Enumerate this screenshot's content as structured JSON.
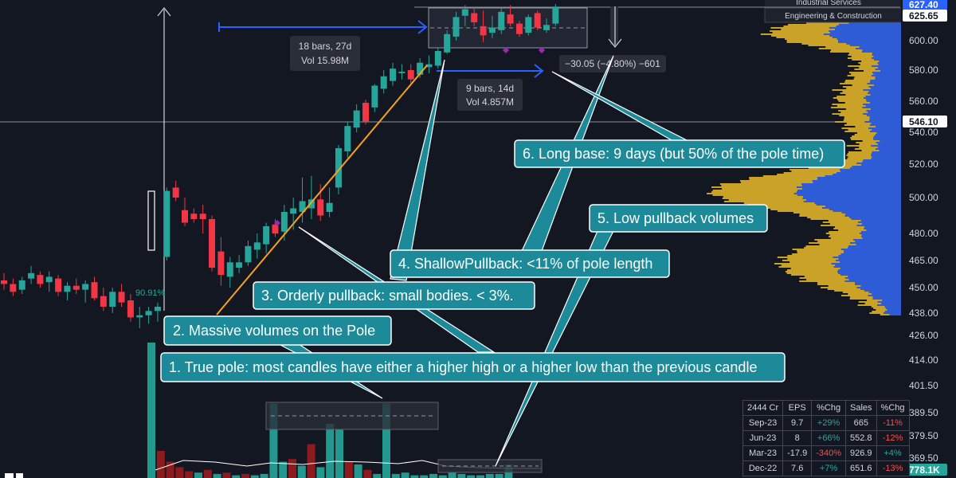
{
  "colors": {
    "background": "#131722",
    "up": "#26a69a",
    "down": "#f23645",
    "pole_line": "#f7a21b",
    "measure_arrow": "#2962ff",
    "callout_fill": "#1d8a99",
    "profile_gold": "#c9a227",
    "profile_blue": "#2e5bd6",
    "grid": "#8a8f98"
  },
  "chart_data": {
    "type": "candlestick",
    "y_axis": {
      "ticks": [
        "600.00",
        "580.00",
        "560.00",
        "540.00",
        "520.00",
        "500.00",
        "480.00",
        "465.00",
        "450.00",
        "438.00",
        "426.00",
        "414.00",
        "401.50",
        "389.50",
        "379.50",
        "369.50"
      ],
      "tick_values": [
        600,
        580,
        560,
        540,
        520,
        500,
        480,
        465,
        450,
        438,
        426,
        414,
        401.5,
        389.5,
        379.5,
        369.5
      ],
      "highlight_labels": [
        {
          "text": "627.40",
          "value": 627.4,
          "bg": "#2962ff"
        },
        {
          "text": "625.65",
          "value": 625.65,
          "bg": "#ffffff"
        },
        {
          "text": "546.10",
          "value": 546.1,
          "bg": "#ffffff"
        },
        {
          "text": "778.1K",
          "value": 369,
          "bg": "#26a69a"
        }
      ]
    },
    "candles": [
      {
        "o": 454,
        "h": 458,
        "l": 449,
        "c": 452
      },
      {
        "o": 452,
        "h": 455,
        "l": 446,
        "c": 448
      },
      {
        "o": 449,
        "h": 456,
        "l": 447,
        "c": 454
      },
      {
        "o": 455,
        "h": 462,
        "l": 452,
        "c": 458
      },
      {
        "o": 457,
        "h": 459,
        "l": 450,
        "c": 452
      },
      {
        "o": 453,
        "h": 459,
        "l": 448,
        "c": 456
      },
      {
        "o": 455,
        "h": 457,
        "l": 446,
        "c": 448
      },
      {
        "o": 448,
        "h": 453,
        "l": 444,
        "c": 451
      },
      {
        "o": 451,
        "h": 455,
        "l": 447,
        "c": 449
      },
      {
        "o": 449,
        "h": 454,
        "l": 443,
        "c": 452
      },
      {
        "o": 453,
        "h": 456,
        "l": 444,
        "c": 445
      },
      {
        "o": 446,
        "h": 450,
        "l": 439,
        "c": 441
      },
      {
        "o": 441,
        "h": 450,
        "l": 438,
        "c": 448
      },
      {
        "o": 448,
        "h": 452,
        "l": 441,
        "c": 443
      },
      {
        "o": 444,
        "h": 447,
        "l": 434,
        "c": 436
      },
      {
        "o": 436,
        "h": 441,
        "l": 431,
        "c": 437
      },
      {
        "o": 437,
        "h": 441,
        "l": 433,
        "c": 439
      },
      {
        "o": 439,
        "h": 443,
        "l": 434,
        "c": 441
      },
      {
        "o": 467,
        "h": 506,
        "l": 465,
        "c": 504
      },
      {
        "o": 506,
        "h": 510,
        "l": 498,
        "c": 500
      },
      {
        "o": 493,
        "h": 500,
        "l": 484,
        "c": 486
      },
      {
        "o": 491,
        "h": 494,
        "l": 486,
        "c": 488
      },
      {
        "o": 491,
        "h": 496,
        "l": 480,
        "c": 488
      },
      {
        "o": 488,
        "h": 490,
        "l": 459,
        "c": 461
      },
      {
        "o": 470,
        "h": 478,
        "l": 451,
        "c": 457
      },
      {
        "o": 456,
        "h": 467,
        "l": 450,
        "c": 464
      },
      {
        "o": 461,
        "h": 468,
        "l": 458,
        "c": 464
      },
      {
        "o": 464,
        "h": 476,
        "l": 462,
        "c": 473
      },
      {
        "o": 471,
        "h": 480,
        "l": 466,
        "c": 475
      },
      {
        "o": 474,
        "h": 486,
        "l": 469,
        "c": 484
      },
      {
        "o": 485,
        "h": 488,
        "l": 478,
        "c": 480
      },
      {
        "o": 481,
        "h": 496,
        "l": 476,
        "c": 492
      },
      {
        "o": 491,
        "h": 500,
        "l": 482,
        "c": 494
      },
      {
        "o": 492,
        "h": 512,
        "l": 486,
        "c": 498
      },
      {
        "o": 494,
        "h": 513,
        "l": 488,
        "c": 499
      },
      {
        "o": 499,
        "h": 508,
        "l": 487,
        "c": 490
      },
      {
        "o": 492,
        "h": 506,
        "l": 489,
        "c": 497
      },
      {
        "o": 506,
        "h": 532,
        "l": 502,
        "c": 530
      },
      {
        "o": 528,
        "h": 547,
        "l": 524,
        "c": 544
      },
      {
        "o": 543,
        "h": 558,
        "l": 540,
        "c": 554
      },
      {
        "o": 559,
        "h": 561,
        "l": 545,
        "c": 547
      },
      {
        "o": 556,
        "h": 571,
        "l": 553,
        "c": 570
      },
      {
        "o": 568,
        "h": 580,
        "l": 565,
        "c": 576
      },
      {
        "o": 573,
        "h": 585,
        "l": 570,
        "c": 581
      },
      {
        "o": 578,
        "h": 584,
        "l": 574,
        "c": 579
      },
      {
        "o": 580,
        "h": 584,
        "l": 570,
        "c": 574
      },
      {
        "o": 577,
        "h": 588,
        "l": 575,
        "c": 585
      },
      {
        "o": 582,
        "h": 590,
        "l": 578,
        "c": 584
      },
      {
        "o": 583,
        "h": 595,
        "l": 581,
        "c": 593
      },
      {
        "o": 592,
        "h": 608,
        "l": 591,
        "c": 605
      },
      {
        "o": 603,
        "h": 622,
        "l": 600,
        "c": 618
      },
      {
        "o": 619,
        "h": 627,
        "l": 611,
        "c": 624
      },
      {
        "o": 621,
        "h": 626,
        "l": 611,
        "c": 614
      },
      {
        "o": 611,
        "h": 623,
        "l": 599,
        "c": 604
      },
      {
        "o": 606,
        "h": 619,
        "l": 602,
        "c": 610
      },
      {
        "o": 608,
        "h": 625,
        "l": 605,
        "c": 622
      },
      {
        "o": 620,
        "h": 627,
        "l": 611,
        "c": 613
      },
      {
        "o": 613,
        "h": 615,
        "l": 603,
        "c": 605
      },
      {
        "o": 606,
        "h": 620,
        "l": 604,
        "c": 618
      },
      {
        "o": 621,
        "h": 623,
        "l": 608,
        "c": 610
      },
      {
        "o": 608,
        "h": 617,
        "l": 606,
        "c": 612
      },
      {
        "o": 613,
        "h": 628,
        "l": 611,
        "c": 626
      }
    ],
    "annotations": [
      {
        "type": "text",
        "text": "90.91%"
      },
      {
        "type": "info",
        "lines": [
          "18 bars, 27d",
          "Vol 15.98M"
        ]
      },
      {
        "type": "info",
        "lines": [
          "9 bars, 14d",
          "Vol 4.857M"
        ]
      },
      {
        "type": "info",
        "lines": [
          "−30.05 (−4.80%) −601"
        ]
      }
    ],
    "volume_bars": [
      {
        "v": 100,
        "c": "up"
      },
      {
        "v": 20,
        "c": "down"
      },
      {
        "v": 12,
        "c": "down"
      },
      {
        "v": 8,
        "c": "down"
      },
      {
        "v": 5,
        "c": "down"
      },
      {
        "v": 4,
        "c": "up"
      },
      {
        "v": 6,
        "c": "down"
      },
      {
        "v": 3,
        "c": "up"
      },
      {
        "v": 4,
        "c": "down"
      },
      {
        "v": 2,
        "c": "up"
      },
      {
        "v": 3,
        "c": "down"
      },
      {
        "v": 2,
        "c": "up"
      },
      {
        "v": 3,
        "c": "up"
      },
      {
        "v": 55,
        "c": "up"
      },
      {
        "v": 12,
        "c": "up"
      },
      {
        "v": 14,
        "c": "down"
      },
      {
        "v": 9,
        "c": "up"
      },
      {
        "v": 25,
        "c": "down"
      },
      {
        "v": 8,
        "c": "up"
      },
      {
        "v": 40,
        "c": "up"
      },
      {
        "v": 36,
        "c": "up"
      },
      {
        "v": 12,
        "c": "down"
      },
      {
        "v": 10,
        "c": "up"
      },
      {
        "v": 6,
        "c": "down"
      },
      {
        "v": 3,
        "c": "up"
      },
      {
        "v": 55,
        "c": "up"
      },
      {
        "v": 3,
        "c": "up"
      },
      {
        "v": 4,
        "c": "up"
      },
      {
        "v": 2,
        "c": "up"
      },
      {
        "v": 2,
        "c": "up"
      },
      {
        "v": 3,
        "c": "up"
      },
      {
        "v": 2,
        "c": "up"
      },
      {
        "v": 4,
        "c": "up"
      },
      {
        "v": 3,
        "c": "up"
      },
      {
        "v": 2,
        "c": "up"
      },
      {
        "v": 2,
        "c": "up"
      },
      {
        "v": 3,
        "c": "up"
      },
      {
        "v": 3,
        "c": "up"
      },
      {
        "v": 10,
        "c": "up"
      }
    ]
  },
  "sector_labels": [
    "Industrial Services",
    "Engineering & Construction"
  ],
  "callouts": [
    {
      "id": "c6",
      "text": "6. Long base: 9 days (but 50% of the pole time)"
    },
    {
      "id": "c5",
      "text": "5. Low pullback volumes"
    },
    {
      "id": "c4",
      "text": "4. ShallowPullback: <11% of pole length"
    },
    {
      "id": "c3",
      "text": "3. Orderly pullback: small bodies. < 3%."
    },
    {
      "id": "c2",
      "text": "2. Massive volumes on the Pole"
    },
    {
      "id": "c1",
      "text": "1. True pole: most candles have either a higher high or a higher low than the previous candle"
    }
  ],
  "fundamentals": {
    "header": [
      "2444 Cr",
      "EPS",
      "%Chg",
      "Sales",
      "%Chg"
    ],
    "rows": [
      {
        "period": "Sep-23",
        "eps": "9.7",
        "eps_chg": "+29%",
        "eps_dir": "pos",
        "sales": "665",
        "sales_chg": "-11%",
        "sales_dir": "neg"
      },
      {
        "period": "Jun-23",
        "eps": "8",
        "eps_chg": "+66%",
        "eps_dir": "pos",
        "sales": "552.8",
        "sales_chg": "-12%",
        "sales_dir": "neg"
      },
      {
        "period": "Mar-23",
        "eps": "-17.9",
        "eps_chg": "-340%",
        "eps_dir": "neg",
        "sales": "926.9",
        "sales_chg": "+4%",
        "sales_dir": "pos"
      },
      {
        "period": "Dec-22",
        "eps": "7.6",
        "eps_chg": "+7%",
        "eps_dir": "pos",
        "sales": "651.6",
        "sales_chg": "-13%",
        "sales_dir": "neg"
      }
    ]
  }
}
